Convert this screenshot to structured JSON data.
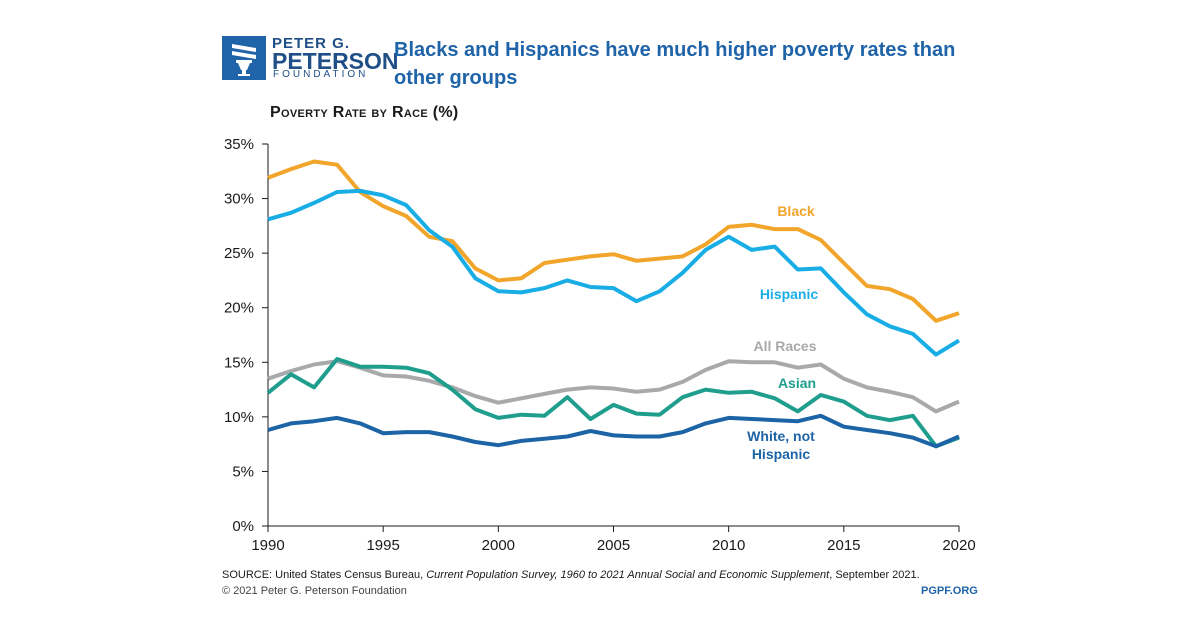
{
  "logo": {
    "line1": "PETER G.",
    "line2": "PETERSON",
    "line3": "FOUNDATION"
  },
  "headline": "Blacks and Hispanics have much higher poverty rates than other groups",
  "chart_data": {
    "type": "line",
    "title": "Poverty Rate by Race (%)",
    "xlabel": "",
    "ylabel": "",
    "xlim": [
      1990,
      2020
    ],
    "ylim": [
      0,
      35
    ],
    "yticks": [
      0,
      5,
      10,
      15,
      20,
      25,
      30,
      35
    ],
    "ytick_labels": [
      "0%",
      "5%",
      "10%",
      "15%",
      "20%",
      "25%",
      "30%",
      "35%"
    ],
    "xticks": [
      1990,
      1995,
      2000,
      2005,
      2010,
      2015,
      2020
    ],
    "xtick_labels": [
      "1990",
      "1995",
      "2000",
      "2005",
      "2010",
      "2015",
      "2020"
    ],
    "x": [
      1990,
      1991,
      1992,
      1993,
      1994,
      1995,
      1996,
      1997,
      1998,
      1999,
      2000,
      2001,
      2002,
      2003,
      2004,
      2005,
      2006,
      2007,
      2008,
      2009,
      2010,
      2011,
      2012,
      2013,
      2014,
      2015,
      2016,
      2017,
      2018,
      2019,
      2020
    ],
    "series": [
      {
        "name": "Black",
        "label_lines": [
          "Black"
        ],
        "color": "#f2a52b",
        "values": [
          31.9,
          32.7,
          33.4,
          33.1,
          30.6,
          29.3,
          28.4,
          26.5,
          26.1,
          23.6,
          22.5,
          22.7,
          24.1,
          24.4,
          24.7,
          24.9,
          24.3,
          24.5,
          24.7,
          25.8,
          27.4,
          27.6,
          27.2,
          27.2,
          26.2,
          24.1,
          22.0,
          21.7,
          20.8,
          18.8,
          19.5
        ]
      },
      {
        "name": "Hispanic",
        "label_lines": [
          "Hispanic"
        ],
        "color": "#18aee5",
        "values": [
          28.1,
          28.7,
          29.6,
          30.6,
          30.7,
          30.3,
          29.4,
          27.1,
          25.6,
          22.7,
          21.5,
          21.4,
          21.8,
          22.5,
          21.9,
          21.8,
          20.6,
          21.5,
          23.2,
          25.3,
          26.5,
          25.3,
          25.6,
          23.5,
          23.6,
          21.4,
          19.4,
          18.3,
          17.6,
          15.7,
          17.0
        ]
      },
      {
        "name": "All Races",
        "label_lines": [
          "All Races"
        ],
        "color": "#a8a9ab",
        "values": [
          13.5,
          14.2,
          14.8,
          15.1,
          14.5,
          13.8,
          13.7,
          13.3,
          12.7,
          11.9,
          11.3,
          11.7,
          12.1,
          12.5,
          12.7,
          12.6,
          12.3,
          12.5,
          13.2,
          14.3,
          15.1,
          15.0,
          15.0,
          14.5,
          14.8,
          13.5,
          12.7,
          12.3,
          11.8,
          10.5,
          11.4
        ]
      },
      {
        "name": "Asian",
        "label_lines": [
          "Asian"
        ],
        "color": "#1f9e8e",
        "values": [
          12.2,
          13.9,
          12.7,
          15.3,
          14.6,
          14.6,
          14.5,
          14.0,
          12.5,
          10.7,
          9.9,
          10.2,
          10.1,
          11.8,
          9.8,
          11.1,
          10.3,
          10.2,
          11.8,
          12.5,
          12.2,
          12.3,
          11.7,
          10.5,
          12.0,
          11.4,
          10.1,
          9.7,
          10.1,
          7.3,
          8.1
        ]
      },
      {
        "name": "White, not Hispanic",
        "label_lines": [
          "White, not",
          "Hispanic"
        ],
        "color": "#1c64a6",
        "values": [
          8.8,
          9.4,
          9.6,
          9.9,
          9.4,
          8.5,
          8.6,
          8.6,
          8.2,
          7.7,
          7.4,
          7.8,
          8.0,
          8.2,
          8.7,
          8.3,
          8.2,
          8.2,
          8.6,
          9.4,
          9.9,
          9.8,
          9.7,
          9.6,
          10.1,
          9.1,
          8.8,
          8.5,
          8.1,
          7.3,
          8.2
        ]
      }
    ]
  },
  "footer": {
    "source_prefix": "SOURCE: United States Census Bureau, ",
    "source_italic": "Current Population Survey, 1960 to 2021 Annual Social and Economic Supplement",
    "source_suffix": ", September 2021.",
    "copyright": "© 2021 Peter G. Peterson Foundation",
    "site": "PGPF.ORG"
  }
}
